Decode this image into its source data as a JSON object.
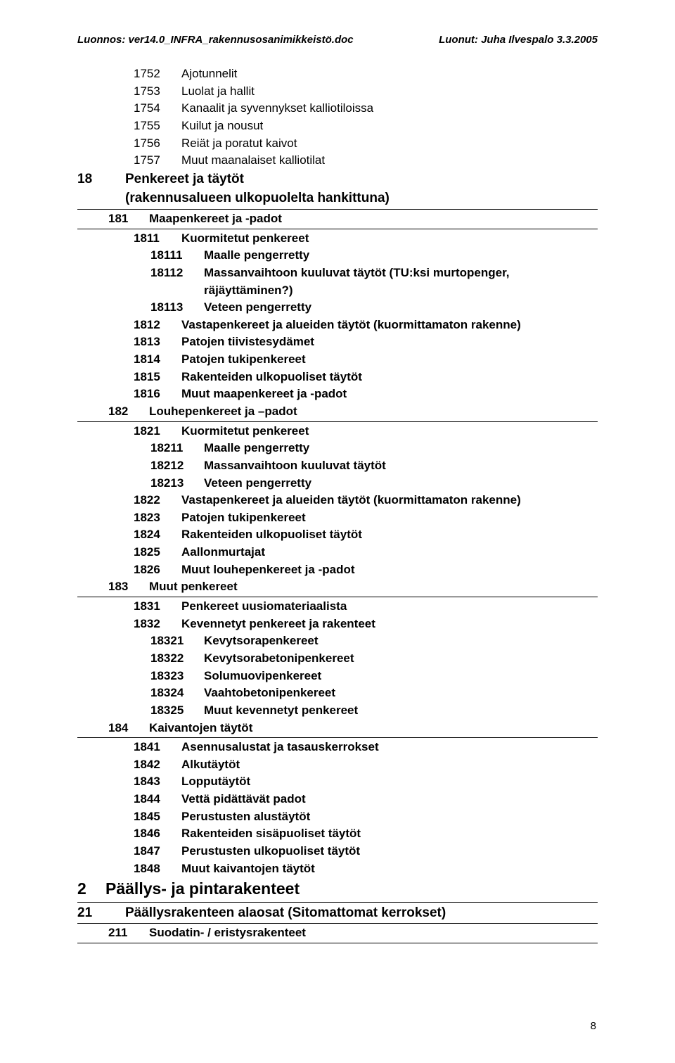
{
  "header": {
    "left": "Luonnos: ver14.0_INFRA_rakennusosanimikkeistö.doc",
    "right": "Luonut: Juha Ilvespalo 3.3.2005"
  },
  "page_number": "8",
  "rows": [
    {
      "ind": 2,
      "codeCls": "w-lvl3",
      "code": "1752",
      "label": "Ajotunnelit"
    },
    {
      "ind": 2,
      "codeCls": "w-lvl3",
      "code": "1753",
      "label": "Luolat ja hallit"
    },
    {
      "ind": 2,
      "codeCls": "w-lvl3",
      "code": "1754",
      "label": "Kanaalit ja syvennykset kalliotiloissa"
    },
    {
      "ind": 2,
      "codeCls": "w-lvl3",
      "code": "1755",
      "label": "Kuilut ja nousut"
    },
    {
      "ind": 2,
      "codeCls": "w-lvl3",
      "code": "1756",
      "label": "Reiät ja poratut kaivot"
    },
    {
      "ind": 2,
      "codeCls": "w-lvl3",
      "code": "1757",
      "label": "Muut maanalaiset kalliotilat"
    },
    {
      "ind": 0,
      "codeCls": "w-lvl1",
      "code": "18",
      "label": "Penkereet ja täytöt",
      "bold": true,
      "fs": "fs-l2",
      "hr": true,
      "cont": "(rakennusalueen ulkopuolelta hankittuna)"
    },
    {
      "ind": 1,
      "codeCls": "w-lvl2",
      "code": "181",
      "label": "Maapenkereet ja -padot",
      "bold": true,
      "hr": true
    },
    {
      "ind": 2,
      "codeCls": "w-lvl3",
      "code": "1811",
      "label": "Kuormitetut penkereet",
      "bold": true
    },
    {
      "ind": 3,
      "codeCls": "w-lvl4",
      "code": "18111",
      "label": "Maalle pengerretty",
      "bold": true
    },
    {
      "ind": 3,
      "codeCls": "w-lvl4",
      "code": "18112",
      "label": "Massanvaihtoon kuuluvat täytöt (TU:ksi murtopenger,",
      "bold": true,
      "cont": "räjäyttäminen?)"
    },
    {
      "ind": 3,
      "codeCls": "w-lvl4",
      "code": "18113",
      "label": "Veteen pengerretty",
      "bold": true
    },
    {
      "ind": 2,
      "codeCls": "w-lvl3",
      "code": "1812",
      "label": "Vastapenkereet ja alueiden täytöt (kuormittamaton rakenne)",
      "bold": true
    },
    {
      "ind": 2,
      "codeCls": "w-lvl3",
      "code": "1813",
      "label": "Patojen tiivistesydämet",
      "bold": true
    },
    {
      "ind": 2,
      "codeCls": "w-lvl3",
      "code": "1814",
      "label": "Patojen tukipenkereet",
      "bold": true
    },
    {
      "ind": 2,
      "codeCls": "w-lvl3",
      "code": "1815",
      "label": "Rakenteiden ulkopuoliset täytöt",
      "bold": true
    },
    {
      "ind": 2,
      "codeCls": "w-lvl3",
      "code": "1816",
      "label": "Muut maapenkereet ja -padot",
      "bold": true
    },
    {
      "ind": 1,
      "codeCls": "w-lvl2",
      "code": "182",
      "label": "Louhepenkereet ja –padot",
      "bold": true,
      "hr": true
    },
    {
      "ind": 2,
      "codeCls": "w-lvl3",
      "code": "1821",
      "label": "Kuormitetut penkereet",
      "bold": true
    },
    {
      "ind": 3,
      "codeCls": "w-lvl4",
      "code": "18211",
      "label": "Maalle pengerretty",
      "bold": true
    },
    {
      "ind": 3,
      "codeCls": "w-lvl4",
      "code": "18212",
      "label": "Massanvaihtoon kuuluvat täytöt",
      "bold": true
    },
    {
      "ind": 3,
      "codeCls": "w-lvl4",
      "code": "18213",
      "label": "Veteen pengerretty",
      "bold": true
    },
    {
      "ind": 2,
      "codeCls": "w-lvl3",
      "code": "1822",
      "label": "Vastapenkereet ja alueiden täytöt (kuormittamaton rakenne)",
      "bold": true
    },
    {
      "ind": 2,
      "codeCls": "w-lvl3",
      "code": "1823",
      "label": "Patojen tukipenkereet",
      "bold": true
    },
    {
      "ind": 2,
      "codeCls": "w-lvl3",
      "code": "1824",
      "label": "Rakenteiden ulkopuoliset täytöt",
      "bold": true
    },
    {
      "ind": 2,
      "codeCls": "w-lvl3",
      "code": "1825",
      "label": "Aallonmurtajat",
      "bold": true
    },
    {
      "ind": 2,
      "codeCls": "w-lvl3",
      "code": "1826",
      "label": "Muut louhepenkereet ja -padot",
      "bold": true
    },
    {
      "ind": 1,
      "codeCls": "w-lvl2",
      "code": "183",
      "label": "Muut penkereet",
      "bold": true,
      "hr": true
    },
    {
      "ind": 2,
      "codeCls": "w-lvl3",
      "code": "1831",
      "label": "Penkereet uusiomateriaalista",
      "bold": true
    },
    {
      "ind": 2,
      "codeCls": "w-lvl3",
      "code": "1832",
      "label": "Kevennetyt penkereet ja rakenteet",
      "bold": true
    },
    {
      "ind": 3,
      "codeCls": "w-lvl4",
      "code": "18321",
      "label": "Kevytsorapenkereet",
      "bold": true
    },
    {
      "ind": 3,
      "codeCls": "w-lvl4",
      "code": "18322",
      "label": "Kevytsorabetonipenkereet",
      "bold": true
    },
    {
      "ind": 3,
      "codeCls": "w-lvl4",
      "code": "18323",
      "label": "Solumuovipenkereet",
      "bold": true
    },
    {
      "ind": 3,
      "codeCls": "w-lvl4",
      "code": "18324",
      "label": "Vaahtobetonipenkereet",
      "bold": true
    },
    {
      "ind": 3,
      "codeCls": "w-lvl4",
      "code": "18325",
      "label": "Muut kevennetyt penkereet",
      "bold": true
    },
    {
      "ind": 1,
      "codeCls": "w-lvl2",
      "code": "184",
      "label": "Kaivantojen täytöt",
      "bold": true,
      "hr": true
    },
    {
      "ind": 2,
      "codeCls": "w-lvl3",
      "code": "1841",
      "label": "Asennusalustat ja tasauskerrokset",
      "bold": true
    },
    {
      "ind": 2,
      "codeCls": "w-lvl3",
      "code": "1842",
      "label": "Alkutäytöt",
      "bold": true
    },
    {
      "ind": 2,
      "codeCls": "w-lvl3",
      "code": "1843",
      "label": "Lopputäytöt",
      "bold": true
    },
    {
      "ind": 2,
      "codeCls": "w-lvl3",
      "code": "1844",
      "label": "Vettä pidättävät padot",
      "bold": true
    },
    {
      "ind": 2,
      "codeCls": "w-lvl3",
      "code": "1845",
      "label": "Perustusten alustäytöt",
      "bold": true
    },
    {
      "ind": 2,
      "codeCls": "w-lvl3",
      "code": "1846",
      "label": "Rakenteiden sisäpuoliset täytöt",
      "bold": true
    },
    {
      "ind": 2,
      "codeCls": "w-lvl3",
      "code": "1847",
      "label": "Perustusten ulkopuoliset täytöt",
      "bold": true
    },
    {
      "ind": 2,
      "codeCls": "w-lvl3",
      "code": "1848",
      "label": "Muut kaivantojen täytöt",
      "bold": true
    },
    {
      "ind": 0,
      "codeCls": "w-chap",
      "code": "2",
      "label": "Päällys- ja pintarakenteet",
      "bold": true,
      "fs": "fs-chapter",
      "hr": true
    },
    {
      "ind": 0,
      "codeCls": "w-lvl1",
      "code": "21",
      "label": "Päällysrakenteen alaosat (Sitomattomat kerrokset)",
      "bold": true,
      "fs": "fs-l2",
      "hr": true
    },
    {
      "ind": 1,
      "codeCls": "w-lvl2",
      "code": "211",
      "label": "Suodatin- / eristysrakenteet",
      "bold": true,
      "hr": true
    }
  ]
}
